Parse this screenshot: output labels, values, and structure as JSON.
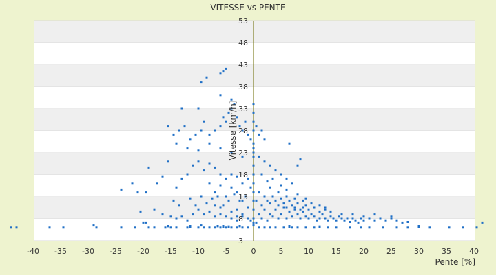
{
  "chart_data": {
    "type": "scatter",
    "title": "VITESSE vs PENTE",
    "xlabel": "Pente [%]",
    "ylabel": "Vitesse [km/h]",
    "xlim": [
      -40,
      40
    ],
    "ylim": [
      3,
      53
    ],
    "x_ticks": [
      "-40",
      "-35",
      "-30",
      "-25",
      "-20",
      "-15",
      "-10",
      "-5",
      "0",
      "5",
      "10",
      "15",
      "20",
      "25",
      "30",
      "35",
      "40"
    ],
    "y_ticks": [
      "3",
      "8",
      "13",
      "18",
      "23",
      "28",
      "33",
      "38",
      "43",
      "48",
      "53"
    ],
    "grid": "horizontal alternating bands",
    "colors": {
      "points": "#1f6fc6",
      "background": "#eef3cf",
      "plot_band": "#efefef",
      "axis_line": "#6b6b00"
    },
    "series": [
      {
        "values": [
          [
            -44,
            6
          ],
          [
            -43,
            6
          ],
          [
            -37,
            6
          ],
          [
            -34.5,
            6
          ],
          [
            -29,
            6.5
          ],
          [
            -28.5,
            6
          ],
          [
            -24,
            6
          ],
          [
            -21.5,
            6
          ],
          [
            -20,
            7
          ],
          [
            -19.5,
            7
          ],
          [
            -19,
            6
          ],
          [
            -18,
            6
          ],
          [
            -16,
            6
          ],
          [
            -15.5,
            6.3
          ],
          [
            -15,
            6
          ],
          [
            -14,
            6
          ],
          [
            -12,
            6
          ],
          [
            -11.5,
            6.2
          ],
          [
            -10,
            6
          ],
          [
            -9.5,
            6.5
          ],
          [
            -9,
            6
          ],
          [
            -8,
            6
          ],
          [
            -7,
            6
          ],
          [
            -6.5,
            6.3
          ],
          [
            -6,
            6
          ],
          [
            -5.5,
            6.2
          ],
          [
            -5,
            6
          ],
          [
            -4.5,
            6.1
          ],
          [
            -4,
            6
          ],
          [
            -3,
            6
          ],
          [
            -2.5,
            6.3
          ],
          [
            -2,
            6
          ],
          [
            -1,
            6
          ],
          [
            1,
            6
          ],
          [
            2,
            6
          ],
          [
            3,
            6
          ],
          [
            4,
            6
          ],
          [
            5.5,
            6
          ],
          [
            6.5,
            6.2
          ],
          [
            7,
            6
          ],
          [
            8,
            6
          ],
          [
            9.5,
            6
          ],
          [
            11,
            6
          ],
          [
            12,
            6.1
          ],
          [
            13.5,
            6
          ],
          [
            15,
            6
          ],
          [
            17.5,
            6
          ],
          [
            19.5,
            6
          ],
          [
            21,
            6
          ],
          [
            23.5,
            6
          ],
          [
            26,
            6
          ],
          [
            28,
            6
          ],
          [
            30,
            6.2
          ],
          [
            32,
            6
          ],
          [
            35.5,
            6
          ],
          [
            38,
            6
          ],
          [
            40.5,
            6
          ],
          [
            41.5,
            7
          ],
          [
            -20.5,
            9.5
          ],
          [
            -18,
            10
          ],
          [
            -16.5,
            9
          ],
          [
            -15,
            8.5
          ],
          [
            -14,
            8
          ],
          [
            -13,
            8.5
          ],
          [
            -12,
            7.5
          ],
          [
            -11,
            9
          ],
          [
            -10,
            10
          ],
          [
            -9,
            9
          ],
          [
            -8,
            9.5
          ],
          [
            -7,
            8.5
          ],
          [
            -6,
            9
          ],
          [
            -5,
            8.5
          ],
          [
            -4,
            8
          ],
          [
            -3,
            7.5
          ],
          [
            -2,
            8.5
          ],
          [
            -1,
            8
          ],
          [
            -0.5,
            7.5
          ],
          [
            0.5,
            7
          ],
          [
            1,
            9
          ],
          [
            1.5,
            8
          ],
          [
            2,
            10
          ],
          [
            2.5,
            7.5
          ],
          [
            3,
            9
          ],
          [
            3.5,
            8.5
          ],
          [
            4,
            10
          ],
          [
            4.5,
            8
          ],
          [
            5,
            9
          ],
          [
            5.5,
            10.5
          ],
          [
            6,
            8
          ],
          [
            6.5,
            9.5
          ],
          [
            7,
            8.5
          ],
          [
            7.5,
            10
          ],
          [
            8,
            9
          ],
          [
            8.5,
            8
          ],
          [
            9,
            9.5
          ],
          [
            9.5,
            8.5
          ],
          [
            10,
            8
          ],
          [
            10.5,
            9
          ],
          [
            11,
            8.5
          ],
          [
            11.5,
            7.5
          ],
          [
            12,
            8
          ],
          [
            12.5,
            9
          ],
          [
            13,
            8
          ],
          [
            13.5,
            7.5
          ],
          [
            14,
            8.5
          ],
          [
            14.5,
            8
          ],
          [
            15,
            7.5
          ],
          [
            15.5,
            8.5
          ],
          [
            16,
            8
          ],
          [
            16.5,
            7.5
          ],
          [
            17,
            8
          ],
          [
            17.5,
            7.2
          ],
          [
            18,
            8
          ],
          [
            18.5,
            7.5
          ],
          [
            19,
            7
          ],
          [
            19.5,
            8
          ],
          [
            20,
            7.5
          ],
          [
            21,
            8
          ],
          [
            22,
            7.5
          ],
          [
            23,
            8
          ],
          [
            24,
            7.5
          ],
          [
            25,
            8
          ],
          [
            26,
            7.5
          ],
          [
            27,
            7
          ],
          [
            28,
            7.2
          ],
          [
            0.5,
            12
          ],
          [
            1,
            14
          ],
          [
            1.5,
            11
          ],
          [
            2,
            13
          ],
          [
            2.5,
            12
          ],
          [
            3,
            11.5
          ],
          [
            3.5,
            13
          ],
          [
            4,
            12
          ],
          [
            4.5,
            11
          ],
          [
            5,
            12.5
          ],
          [
            5.5,
            11.5
          ],
          [
            6,
            10.5
          ],
          [
            6.5,
            12
          ],
          [
            7,
            11
          ],
          [
            7.5,
            10.5
          ],
          [
            8,
            11.5
          ],
          [
            8.5,
            10
          ],
          [
            9,
            10.5
          ],
          [
            9.5,
            11
          ],
          [
            10,
            10
          ],
          [
            11,
            10.5
          ],
          [
            12,
            9.5
          ],
          [
            13,
            10
          ],
          [
            14,
            9.5
          ],
          [
            16,
            9
          ],
          [
            18,
            9
          ],
          [
            20,
            8.5
          ],
          [
            22,
            9
          ],
          [
            25,
            8.5
          ],
          [
            -24,
            14.5
          ],
          [
            -22,
            16
          ],
          [
            -21,
            14
          ],
          [
            -19.5,
            14
          ],
          [
            -19,
            19.5
          ],
          [
            -17.5,
            16
          ],
          [
            -16.5,
            17.5
          ],
          [
            -15.5,
            21
          ],
          [
            -14,
            15
          ],
          [
            -13,
            17
          ],
          [
            -12,
            18
          ],
          [
            -11,
            20
          ],
          [
            -10,
            21
          ],
          [
            -9,
            19
          ],
          [
            -8,
            20.5
          ],
          [
            -7,
            19.5
          ],
          [
            -6,
            18
          ],
          [
            -5,
            17
          ],
          [
            -4,
            18
          ],
          [
            -3,
            17.5
          ],
          [
            -2,
            16
          ],
          [
            -1,
            17
          ],
          [
            -0.5,
            15
          ],
          [
            -1.5,
            13
          ],
          [
            -2.5,
            12
          ],
          [
            -3.5,
            13.5
          ],
          [
            -4.5,
            12
          ],
          [
            -5.5,
            11
          ],
          [
            -6.5,
            13
          ],
          [
            -7.5,
            12.5
          ],
          [
            -8.5,
            11.5
          ],
          [
            -9.5,
            13
          ],
          [
            -10.5,
            11
          ],
          [
            -11.5,
            12.5
          ],
          [
            -13.5,
            11
          ],
          [
            -14.5,
            12
          ],
          [
            -15.5,
            29
          ],
          [
            -14.5,
            27
          ],
          [
            -13.5,
            28
          ],
          [
            -12.5,
            29
          ],
          [
            -11.5,
            26
          ],
          [
            -10.5,
            27
          ],
          [
            -9.5,
            28
          ],
          [
            -9,
            30
          ],
          [
            -8,
            27
          ],
          [
            -7,
            28
          ],
          [
            -6,
            29
          ],
          [
            -5.5,
            31
          ],
          [
            -5,
            30
          ],
          [
            -4.5,
            32
          ],
          [
            -4,
            33
          ],
          [
            -3.5,
            34
          ],
          [
            -3,
            31
          ],
          [
            -2.5,
            29
          ],
          [
            -2,
            28
          ],
          [
            -1.5,
            30
          ],
          [
            -1,
            27
          ],
          [
            -0.5,
            26
          ],
          [
            0,
            25
          ],
          [
            0.5,
            29
          ],
          [
            1,
            27
          ],
          [
            1.5,
            28
          ],
          [
            2,
            26
          ],
          [
            -14,
            25
          ],
          [
            -12,
            24
          ],
          [
            -10,
            23.5
          ],
          [
            -8,
            25
          ],
          [
            -6,
            24
          ],
          [
            -4,
            23
          ],
          [
            -2,
            22
          ],
          [
            0,
            23
          ],
          [
            1,
            22
          ],
          [
            2,
            21
          ],
          [
            3,
            20
          ],
          [
            4,
            19
          ],
          [
            5,
            18
          ],
          [
            6,
            17
          ],
          [
            7,
            16
          ],
          [
            8,
            20
          ],
          [
            8.5,
            21.5
          ],
          [
            6.5,
            25
          ],
          [
            -13,
            33
          ],
          [
            -10,
            33
          ],
          [
            -6,
            36
          ],
          [
            -4,
            35
          ],
          [
            -9.5,
            39
          ],
          [
            -8.5,
            40
          ],
          [
            -6,
            41
          ],
          [
            -5.5,
            41.5
          ],
          [
            -5,
            42
          ],
          [
            0,
            14
          ],
          [
            0,
            12
          ],
          [
            0,
            10
          ],
          [
            0,
            8
          ],
          [
            0,
            7
          ],
          [
            0,
            6.5
          ],
          [
            0,
            16
          ],
          [
            0,
            18
          ],
          [
            0,
            20
          ],
          [
            0,
            22
          ],
          [
            0,
            24
          ],
          [
            0,
            28
          ],
          [
            0,
            30
          ],
          [
            0,
            32
          ],
          [
            0,
            34
          ],
          [
            3,
            15
          ],
          [
            4.5,
            14
          ],
          [
            6,
            13
          ],
          [
            7.5,
            12.5
          ],
          [
            9,
            12
          ],
          [
            10.5,
            11.5
          ],
          [
            12,
            11
          ],
          [
            13,
            10.5
          ],
          [
            2.5,
            16.5
          ],
          [
            3.5,
            17
          ],
          [
            1.5,
            18
          ],
          [
            5,
            15.5
          ],
          [
            6,
            14.5
          ],
          [
            8,
            13.5
          ],
          [
            9.5,
            12.5
          ],
          [
            -3,
            14
          ],
          [
            -4,
            15
          ],
          [
            -6,
            15.5
          ],
          [
            -7,
            14
          ],
          [
            -8,
            16
          ],
          [
            -5,
            13
          ],
          [
            -2,
            12
          ],
          [
            -1,
            10.5
          ],
          [
            -3,
            10
          ],
          [
            -4,
            9.5
          ],
          [
            -6,
            10.5
          ],
          [
            -7,
            11
          ],
          [
            -2,
            9
          ],
          [
            -3,
            8.5
          ]
        ]
      }
    ]
  }
}
